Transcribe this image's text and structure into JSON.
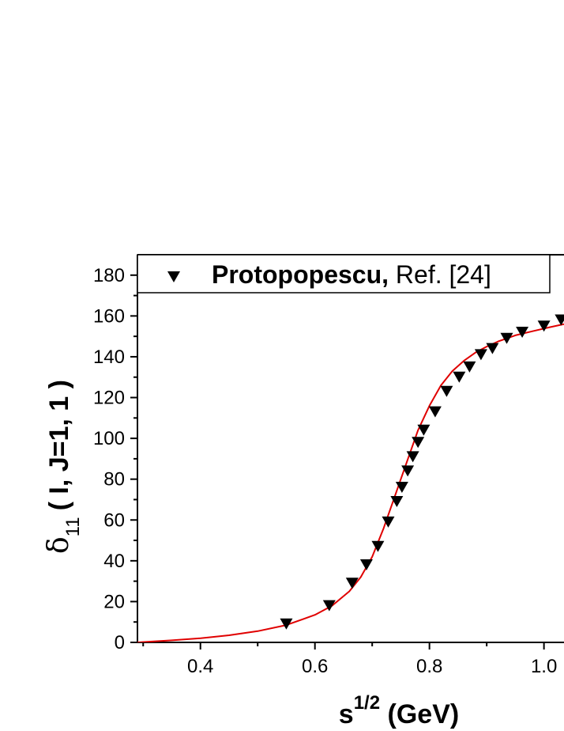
{
  "chart_data": {
    "type": "scatter",
    "title": "",
    "xlabel": {
      "base": "s",
      "sup": "1/2",
      "rest": " (GeV)"
    },
    "ylabel": {
      "sym": "δ",
      "sub": "11",
      "rest": "( I, J=1, 1 )"
    },
    "xlim": [
      0.29,
      1.035
    ],
    "ylim": [
      0,
      190
    ],
    "x_ticks": [
      {
        "value": 0.4,
        "label": "0.4"
      },
      {
        "value": 0.6,
        "label": "0.6"
      },
      {
        "value": 0.8,
        "label": "0.8"
      },
      {
        "value": 1.0,
        "label": "1.0"
      }
    ],
    "y_ticks": [
      {
        "value": 0,
        "label": "0"
      },
      {
        "value": 20,
        "label": "20"
      },
      {
        "value": 40,
        "label": "40"
      },
      {
        "value": 60,
        "label": "60"
      },
      {
        "value": 80,
        "label": "80"
      },
      {
        "value": 100,
        "label": "100"
      },
      {
        "value": 120,
        "label": "120"
      },
      {
        "value": 140,
        "label": "140"
      },
      {
        "value": 160,
        "label": "160"
      },
      {
        "value": 180,
        "label": "180"
      }
    ],
    "grid": false,
    "legend": {
      "placement": "top",
      "bold": "Protopopescu,",
      "normal": " Ref. [24]"
    },
    "series": [
      {
        "name": "Protopopescu, Ref. [24]",
        "kind": "scatter",
        "marker": "triangle-down",
        "color": "#000000",
        "x": [
          0.55,
          0.625,
          0.665,
          0.69,
          0.71,
          0.728,
          0.743,
          0.752,
          0.762,
          0.771,
          0.78,
          0.79,
          0.81,
          0.83,
          0.852,
          0.87,
          0.89,
          0.91,
          0.935,
          0.962,
          1.0,
          1.03
        ],
        "y": [
          9,
          18,
          29,
          38,
          47,
          59,
          69,
          76,
          84,
          91,
          98,
          104,
          113,
          123,
          130,
          135,
          141,
          144,
          149,
          152,
          155,
          158
        ]
      },
      {
        "name": "",
        "kind": "line",
        "color": "#e00000",
        "x": [
          0.29,
          0.35,
          0.4,
          0.45,
          0.5,
          0.55,
          0.6,
          0.63,
          0.66,
          0.68,
          0.7,
          0.72,
          0.735,
          0.75,
          0.765,
          0.78,
          0.8,
          0.82,
          0.84,
          0.86,
          0.88,
          0.9,
          0.92,
          0.95,
          0.98,
          1.01,
          1.035
        ],
        "y": [
          0,
          1,
          2,
          3.5,
          5.5,
          8.5,
          13.5,
          18,
          25,
          32,
          42,
          56,
          68,
          80,
          92,
          104,
          116,
          126,
          133,
          138,
          142,
          145,
          147.5,
          150.5,
          152.5,
          154.5,
          156
        ]
      }
    ]
  }
}
